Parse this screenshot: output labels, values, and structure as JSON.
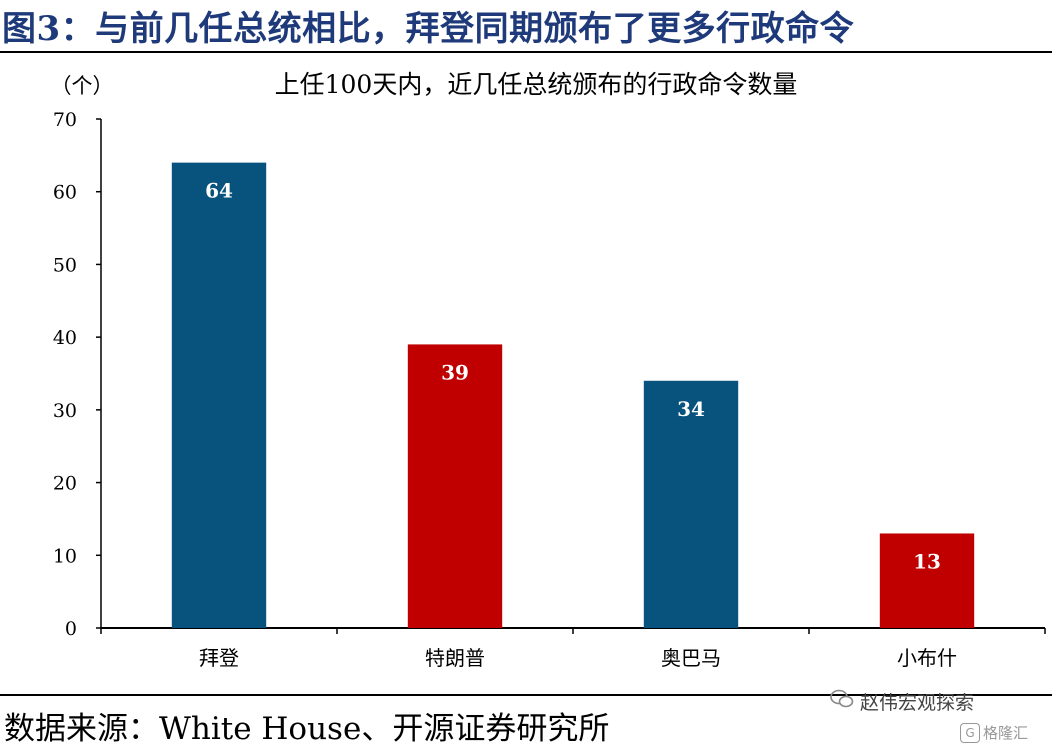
{
  "figure": {
    "title": "图3：与前几任总统相比，拜登同期颁布了更多行政命令",
    "source": "数据来源：White House、开源证券研究所",
    "watermark": "赵伟宏观探索",
    "watermark_sub": "格隆汇",
    "watermark_badge": "G"
  },
  "chart_data": {
    "type": "bar",
    "title": "上任100天内，近几任总统颁布的行政命令数量",
    "ylabel": "（个）",
    "xlabel": "",
    "categories": [
      "拜登",
      "特朗普",
      "奥巴马",
      "小布什"
    ],
    "values": [
      64,
      39,
      34,
      13
    ],
    "bar_colors": [
      "#08527e",
      "#c00000",
      "#08527e",
      "#c00000"
    ],
    "data_labels": [
      "64",
      "39",
      "34",
      "13"
    ],
    "ylim": [
      0,
      70
    ],
    "yticks": [
      "0",
      "10",
      "20",
      "30",
      "40",
      "50",
      "60",
      "70"
    ],
    "grid": false,
    "legend": "none"
  }
}
